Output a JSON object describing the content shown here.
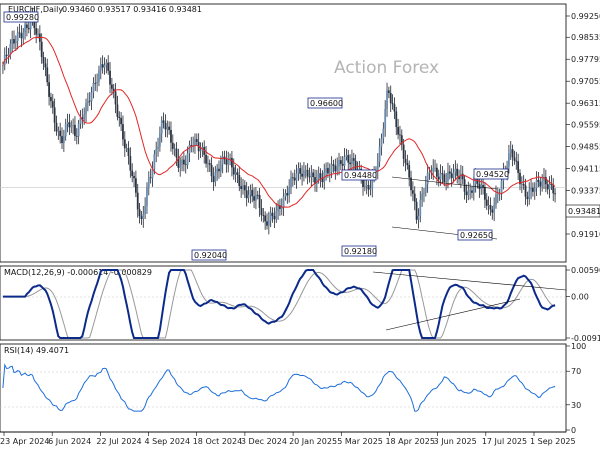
{
  "chart_data": [
    {
      "type": "candlestick",
      "symbol_header": "EURCHF,Daily",
      "ohlc_header": "0.93460 0.93517 0.93416 0.93481",
      "watermark": "Action Forex",
      "x_ticks": [
        "23 Apr 2024",
        "6 Jun 2024",
        "22 Jul 2024",
        "4 Sep 2024",
        "18 Oct 2024",
        "3 Dec 2024",
        "20 Jan 2025",
        "5 Mar 2025",
        "18 Apr 2025",
        "3 Jun 2025",
        "17 Jul 2025",
        "1 Sep 2025"
      ],
      "y_ticks": [
        "0.99250",
        "0.98535",
        "0.97795",
        "0.97055",
        "0.96315",
        "0.95595",
        "0.94855",
        "0.94115",
        "0.93375",
        "0.92635",
        "0.91910"
      ],
      "ylim": [
        0.9191,
        0.9925
      ],
      "current_price": "0.93481",
      "annotations": [
        "0.99280",
        "0.96600",
        "0.94480",
        "0.94520",
        "0.92650",
        "0.92180",
        "0.92040"
      ],
      "moving_average": "red",
      "price_series": [
        0.976,
        0.98,
        0.985,
        0.99,
        0.9928,
        0.982,
        0.97,
        0.96,
        0.952,
        0.956,
        0.95,
        0.96,
        0.968,
        0.972,
        0.975,
        0.968,
        0.96,
        0.948,
        0.935,
        0.9204,
        0.938,
        0.948,
        0.956,
        0.95,
        0.944,
        0.945,
        0.95,
        0.946,
        0.944,
        0.94,
        0.944,
        0.942,
        0.938,
        0.936,
        0.934,
        0.93,
        0.9204,
        0.926,
        0.93,
        0.932,
        0.936,
        0.94,
        0.942,
        0.938,
        0.936,
        0.94,
        0.944,
        0.946,
        0.942,
        0.938,
        0.935,
        0.94,
        0.948,
        0.966,
        0.958,
        0.95,
        0.938,
        0.9218,
        0.934,
        0.944,
        0.94,
        0.936,
        0.938,
        0.94,
        0.934,
        0.936,
        0.932,
        0.9265,
        0.934,
        0.94,
        0.9452,
        0.938,
        0.934,
        0.936,
        0.935,
        0.934,
        0.93481
      ]
    },
    {
      "type": "line",
      "title": "MACD(12,26,9) -0.000614 -0.000829",
      "y_ticks": [
        "0.005907",
        "0.00",
        "-0.009175"
      ],
      "ylim": [
        -0.009175,
        0.005907
      ]
    },
    {
      "type": "line",
      "title": "RSI(14) 49.4071",
      "y_ticks": [
        "100",
        "70",
        "30",
        "0"
      ],
      "ylim": [
        0,
        100
      ]
    }
  ]
}
